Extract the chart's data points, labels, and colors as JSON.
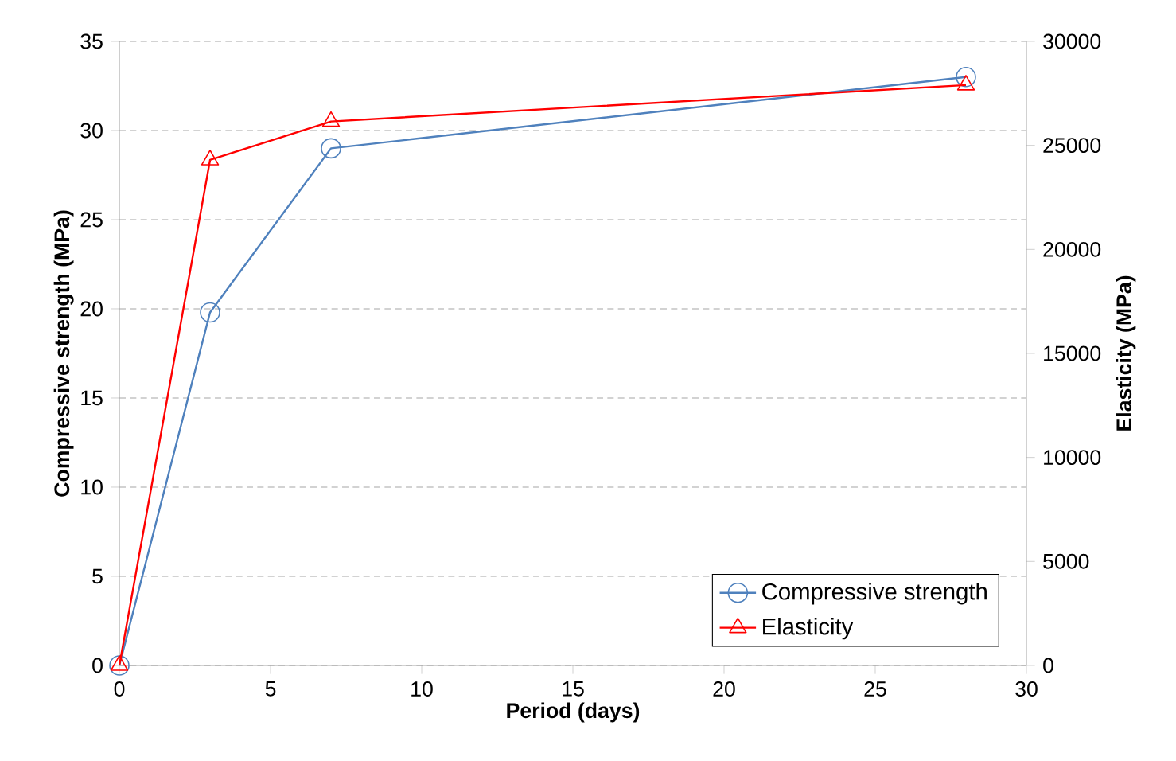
{
  "chart_data": {
    "type": "line",
    "xlabel": "Period (days)",
    "ylabel": "Compressive strength (MPa)",
    "y2label": "Elasticity (MPa)",
    "x": [
      0,
      3,
      7,
      28
    ],
    "series": [
      {
        "name": "Compressive strength",
        "color": "#4f81bd",
        "marker": "circle",
        "values": [
          0,
          19.8,
          29,
          33
        ]
      },
      {
        "name": "Elasticity",
        "color": "#ff0000",
        "marker": "triangle",
        "axis": "y2",
        "values": [
          0,
          24300,
          26150,
          27900
        ]
      }
    ],
    "xlim": [
      0,
      30
    ],
    "xticks": [
      0,
      5,
      10,
      15,
      20,
      25,
      30
    ],
    "ylim": [
      0,
      35
    ],
    "yticks": [
      0,
      5,
      10,
      15,
      20,
      25,
      30,
      35
    ],
    "y2lim": [
      0,
      30000
    ],
    "y2ticks": [
      0,
      5000,
      10000,
      15000,
      20000,
      25000,
      30000
    ],
    "grid": "y",
    "legend": "bottom right",
    "line_style": "solid"
  }
}
